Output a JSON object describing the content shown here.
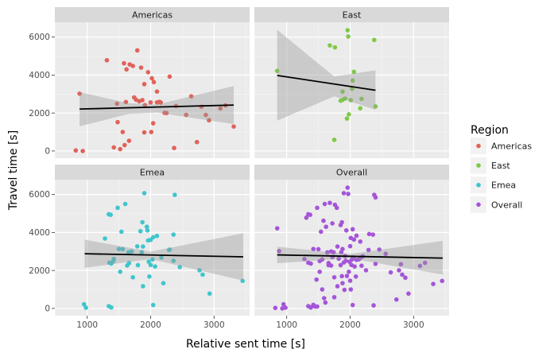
{
  "chart_data": {
    "type": "scatter",
    "facets": [
      "Americas",
      "East",
      "Emea",
      "Overall"
    ],
    "xlabel": "Relative sent time [s]",
    "ylabel": "Travel time [s]",
    "xlim": [
      490,
      3560
    ],
    "ylim": [
      -380,
      6780
    ],
    "xticks": [
      1000,
      2000,
      3000
    ],
    "yticks": [
      0,
      2000,
      4000,
      6000
    ],
    "grid": true,
    "legend": {
      "title": "Region",
      "placement": "right",
      "entries": [
        "Americas",
        "East",
        "Emea",
        "Overall"
      ]
    },
    "colors": {
      "Americas": "#e0625a",
      "East": "#7fc946",
      "Emea": "#3fc5cc",
      "Overall": "#a455d8"
    },
    "series": [
      {
        "name": "Americas",
        "trend": {
          "x0": 880,
          "y0": 2210,
          "x1": 3310,
          "y1": 2420
        },
        "band": {
          "x": [
            880,
            1650,
            2100,
            3310
          ],
          "upper": [
            3100,
            2520,
            2450,
            3420
          ],
          "lower": [
            1300,
            1950,
            2020,
            1420
          ]
        },
        "x": [
          880,
          1310,
          1580,
          1620,
          1720,
          1790,
          1850,
          1670,
          1960,
          2020,
          1900,
          2050,
          2100,
          2160,
          1470,
          1740,
          1820,
          1910,
          2000,
          2100,
          2400,
          2640,
          2800,
          2870,
          2920,
          3100,
          3180,
          3310,
          2560,
          2300,
          2220,
          1770,
          1610,
          1560,
          1480,
          1420,
          1520,
          1900,
          2010,
          1590,
          2040,
          2370,
          2730,
          820,
          930,
          1660,
          2140,
          2250,
          1870
        ],
        "y": [
          3020,
          4780,
          4620,
          4300,
          4480,
          5300,
          4390,
          4560,
          4150,
          3830,
          3520,
          3630,
          3130,
          2550,
          2490,
          2820,
          2620,
          2420,
          2560,
          2560,
          2370,
          2880,
          2330,
          1900,
          1620,
          2240,
          2400,
          1290,
          1900,
          3920,
          2010,
          2700,
          2580,
          1000,
          1520,
          190,
          100,
          980,
          1000,
          310,
          1460,
          160,
          470,
          30,
          0,
          540,
          2590,
          2000,
          2680
        ]
      },
      {
        "name": "East",
        "trend": {
          "x0": 850,
          "y0": 3980,
          "x1": 2400,
          "y1": 3200
        },
        "band": {
          "x": [
            850,
            1750,
            2400
          ],
          "upper": [
            6380,
            3920,
            4250
          ],
          "lower": [
            1600,
            2880,
            2170
          ]
        },
        "x": [
          850,
          1680,
          1760,
          1960,
          1970,
          2040,
          2060,
          2380,
          2030,
          1880,
          1850,
          1920,
          2010,
          2400,
          2180,
          1880,
          1980,
          1950,
          2160,
          1750
        ],
        "y": [
          4220,
          5560,
          5460,
          6360,
          6030,
          3710,
          4170,
          5850,
          3280,
          2690,
          2650,
          2760,
          2680,
          2350,
          2750,
          3130,
          1930,
          1710,
          2250,
          590
        ]
      },
      {
        "name": "Emea",
        "trend": {
          "x0": 960,
          "y0": 2880,
          "x1": 3460,
          "y1": 2720
        },
        "band": {
          "x": [
            960,
            2000,
            3460
          ],
          "upper": [
            3620,
            2990,
            3960
          ],
          "lower": [
            2140,
            2600,
            1470
          ]
        },
        "x": [
          1340,
          1370,
          1480,
          1600,
          1540,
          1280,
          1500,
          1900,
          1870,
          1940,
          1950,
          2100,
          2380,
          2360,
          2040,
          1960,
          1840,
          2000,
          1880,
          1790,
          1700,
          1650,
          1560,
          1420,
          2770,
          2820,
          2930,
          3450,
          1410,
          1860,
          2360,
          2460,
          2170,
          2300,
          1970,
          2000,
          1630,
          1800,
          1660,
          1520,
          1350,
          1380,
          1980,
          2070,
          2200,
          1720,
          2290,
          2030,
          950,
          980,
          1340,
          1380,
          2040,
          1880
        ],
        "y": [
          4960,
          4930,
          5300,
          5500,
          4040,
          3680,
          3130,
          6070,
          4540,
          4300,
          4110,
          3820,
          5980,
          3890,
          3750,
          3580,
          4070,
          3610,
          3260,
          3270,
          3000,
          2950,
          3120,
          2600,
          2010,
          1780,
          780,
          1450,
          2480,
          2960,
          2510,
          2180,
          2680,
          3100,
          2460,
          2290,
          2260,
          2280,
          2390,
          1930,
          2410,
          2360,
          1680,
          2210,
          1330,
          1640,
          3080,
          2580,
          220,
          40,
          120,
          50,
          180,
          1170
        ]
      },
      {
        "name": "Overall",
        "trend": {
          "x0": 850,
          "y0": 2820,
          "x1": 3460,
          "y1": 2650
        },
        "band": {
          "x": [
            850,
            2000,
            3460
          ],
          "upper": [
            3250,
            2870,
            3560
          ],
          "lower": [
            2380,
            2640,
            1780
          ]
        },
        "x": [
          850,
          880,
          1310,
          1340,
          1370,
          1480,
          1540,
          1580,
          1600,
          1620,
          1680,
          1720,
          1760,
          1790,
          1850,
          1870,
          1900,
          1940,
          1960,
          1970,
          2010,
          2040,
          2060,
          2100,
          2160,
          2380,
          2400,
          2360,
          1420,
          1500,
          1640,
          1700,
          1800,
          1880,
          1920,
          2000,
          2040,
          2100,
          2200,
          2300,
          2460,
          2560,
          2640,
          2800,
          2870,
          2920,
          3100,
          3180,
          3310,
          3450,
          1280,
          1340,
          1380,
          1520,
          1560,
          1660,
          1720,
          1820,
          1860,
          1900,
          1990,
          2030,
          2070,
          2170,
          2250,
          2290,
          2400,
          2730,
          2770,
          2820,
          1470,
          1560,
          1610,
          1750,
          1870,
          1910,
          1980,
          2010,
          2140,
          2370,
          1420,
          1480,
          1520,
          1590,
          1660,
          1700,
          1750,
          1800,
          1880,
          1950,
          2000,
          2040,
          2090,
          2180,
          820,
          930,
          950,
          980,
          1340,
          1380,
          1430,
          1450,
          2020,
          2050,
          1740,
          1850,
          1930
        ],
        "y": [
          4220,
          3020,
          4780,
          4960,
          4930,
          5300,
          4040,
          4620,
          5500,
          4300,
          5560,
          4480,
          5460,
          5300,
          4390,
          4540,
          6070,
          4110,
          6360,
          6030,
          3710,
          4170,
          3630,
          3830,
          3520,
          5980,
          5850,
          3890,
          3130,
          3120,
          2950,
          3000,
          3260,
          3130,
          2760,
          3280,
          2680,
          2560,
          2750,
          3920,
          3100,
          2880,
          1900,
          2330,
          1620,
          780,
          2240,
          2400,
          1290,
          1450,
          2600,
          2410,
          2360,
          2490,
          2580,
          2390,
          2700,
          2620,
          2960,
          2420,
          2460,
          2580,
          2210,
          2680,
          2010,
          3080,
          2350,
          470,
          2010,
          1780,
          1520,
          1000,
          310,
          1640,
          1700,
          980,
          1930,
          1000,
          2590,
          160,
          190,
          100,
          1930,
          540,
          2280,
          2260,
          590,
          1170,
          1330,
          1710,
          1460,
          180,
          1680,
          2250,
          30,
          0,
          220,
          40,
          120,
          50,
          130,
          100,
          2290,
          2680,
          2950,
          2280,
          2510
        ]
      }
    ]
  }
}
